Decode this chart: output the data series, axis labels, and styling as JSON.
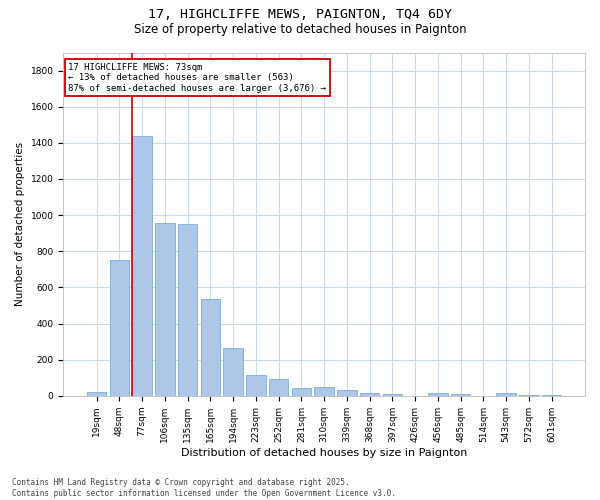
{
  "title_line1": "17, HIGHCLIFFE MEWS, PAIGNTON, TQ4 6DY",
  "title_line2": "Size of property relative to detached houses in Paignton",
  "xlabel": "Distribution of detached houses by size in Paignton",
  "ylabel": "Number of detached properties",
  "categories": [
    "19sqm",
    "48sqm",
    "77sqm",
    "106sqm",
    "135sqm",
    "165sqm",
    "194sqm",
    "223sqm",
    "252sqm",
    "281sqm",
    "310sqm",
    "339sqm",
    "368sqm",
    "397sqm",
    "426sqm",
    "456sqm",
    "485sqm",
    "514sqm",
    "543sqm",
    "572sqm",
    "601sqm"
  ],
  "values": [
    22,
    750,
    1440,
    955,
    950,
    535,
    265,
    115,
    95,
    45,
    48,
    30,
    15,
    12,
    0,
    15,
    12,
    0,
    18,
    5,
    5
  ],
  "bar_color": "#aec6e8",
  "bar_edge_color": "#7aafd4",
  "marker_index": 2,
  "marker_line_color": "#cc0000",
  "annotation_line1": "17 HIGHCLIFFE MEWS: 73sqm",
  "annotation_line2": "← 13% of detached houses are smaller (563)",
  "annotation_line3": "87% of semi-detached houses are larger (3,676) →",
  "annotation_box_edge_color": "#cc0000",
  "ylim": [
    0,
    1900
  ],
  "yticks": [
    0,
    200,
    400,
    600,
    800,
    1000,
    1200,
    1400,
    1600,
    1800
  ],
  "footer_line1": "Contains HM Land Registry data © Crown copyright and database right 2025.",
  "footer_line2": "Contains public sector information licensed under the Open Government Licence v3.0.",
  "bg_color": "#ffffff",
  "grid_color": "#c8d8e8",
  "title1_fontsize": 9.5,
  "title2_fontsize": 8.5,
  "xlabel_fontsize": 8.0,
  "ylabel_fontsize": 7.5,
  "tick_fontsize": 6.5,
  "annot_fontsize": 6.5,
  "footer_fontsize": 5.5
}
